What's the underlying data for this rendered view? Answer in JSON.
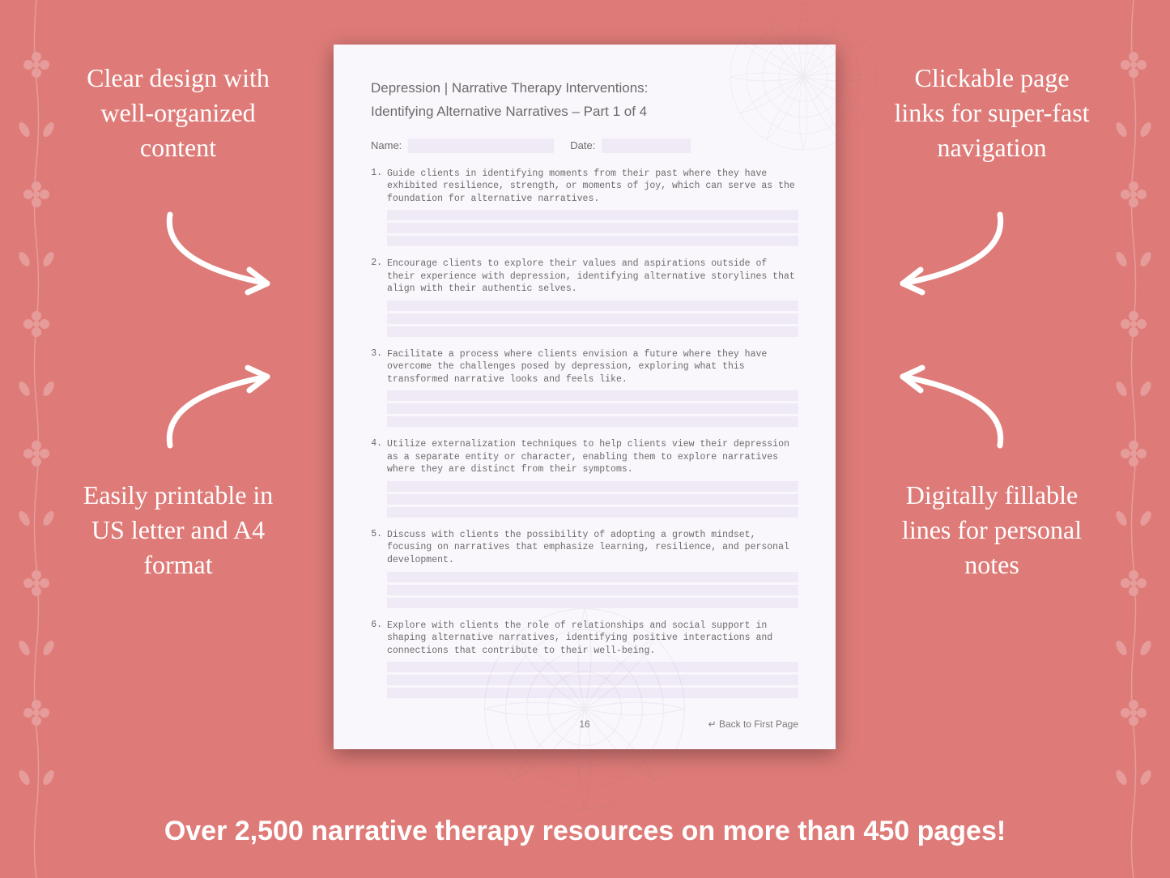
{
  "background_color": "#de7b78",
  "page_background": "#faf7fc",
  "fill_line_color": "#f0e9f6",
  "text_muted": "#6b6b6b",
  "callouts": {
    "top_left": "Clear design with well-organized content",
    "top_right": "Clickable page links for super-fast navigation",
    "bottom_left": "Easily printable in US letter and A4 format",
    "bottom_right": "Digitally fillable lines for personal notes"
  },
  "page": {
    "title_line1": "Depression | Narrative Therapy Interventions:",
    "title_line2": "Identifying Alternative Narratives – Part 1 of 4",
    "name_label": "Name:",
    "date_label": "Date:",
    "questions": [
      "Guide clients in identifying moments from their past where they have exhibited resilience, strength, or moments of joy, which can serve as the foundation for alternative narratives.",
      "Encourage clients to explore their values and aspirations outside of their experience with depression, identifying alternative storylines that align with their authentic selves.",
      "Facilitate a process where clients envision a future where they have overcome the challenges posed by depression, exploring what this transformed narrative looks and feels like.",
      "Utilize externalization techniques to help clients view their depression as a separate entity or character, enabling them to explore narratives where they are distinct from their symptoms.",
      "Discuss with clients the possibility of adopting a growth mindset, focusing on narratives that emphasize learning, resilience, and personal development.",
      "Explore with clients the role of relationships and social support in shaping alternative narratives, identifying positive interactions and connections that contribute to their well-being."
    ],
    "page_number": "16",
    "back_link": "↵ Back to First Page"
  },
  "banner": "Over 2,500 narrative therapy resources on more than 450 pages!"
}
